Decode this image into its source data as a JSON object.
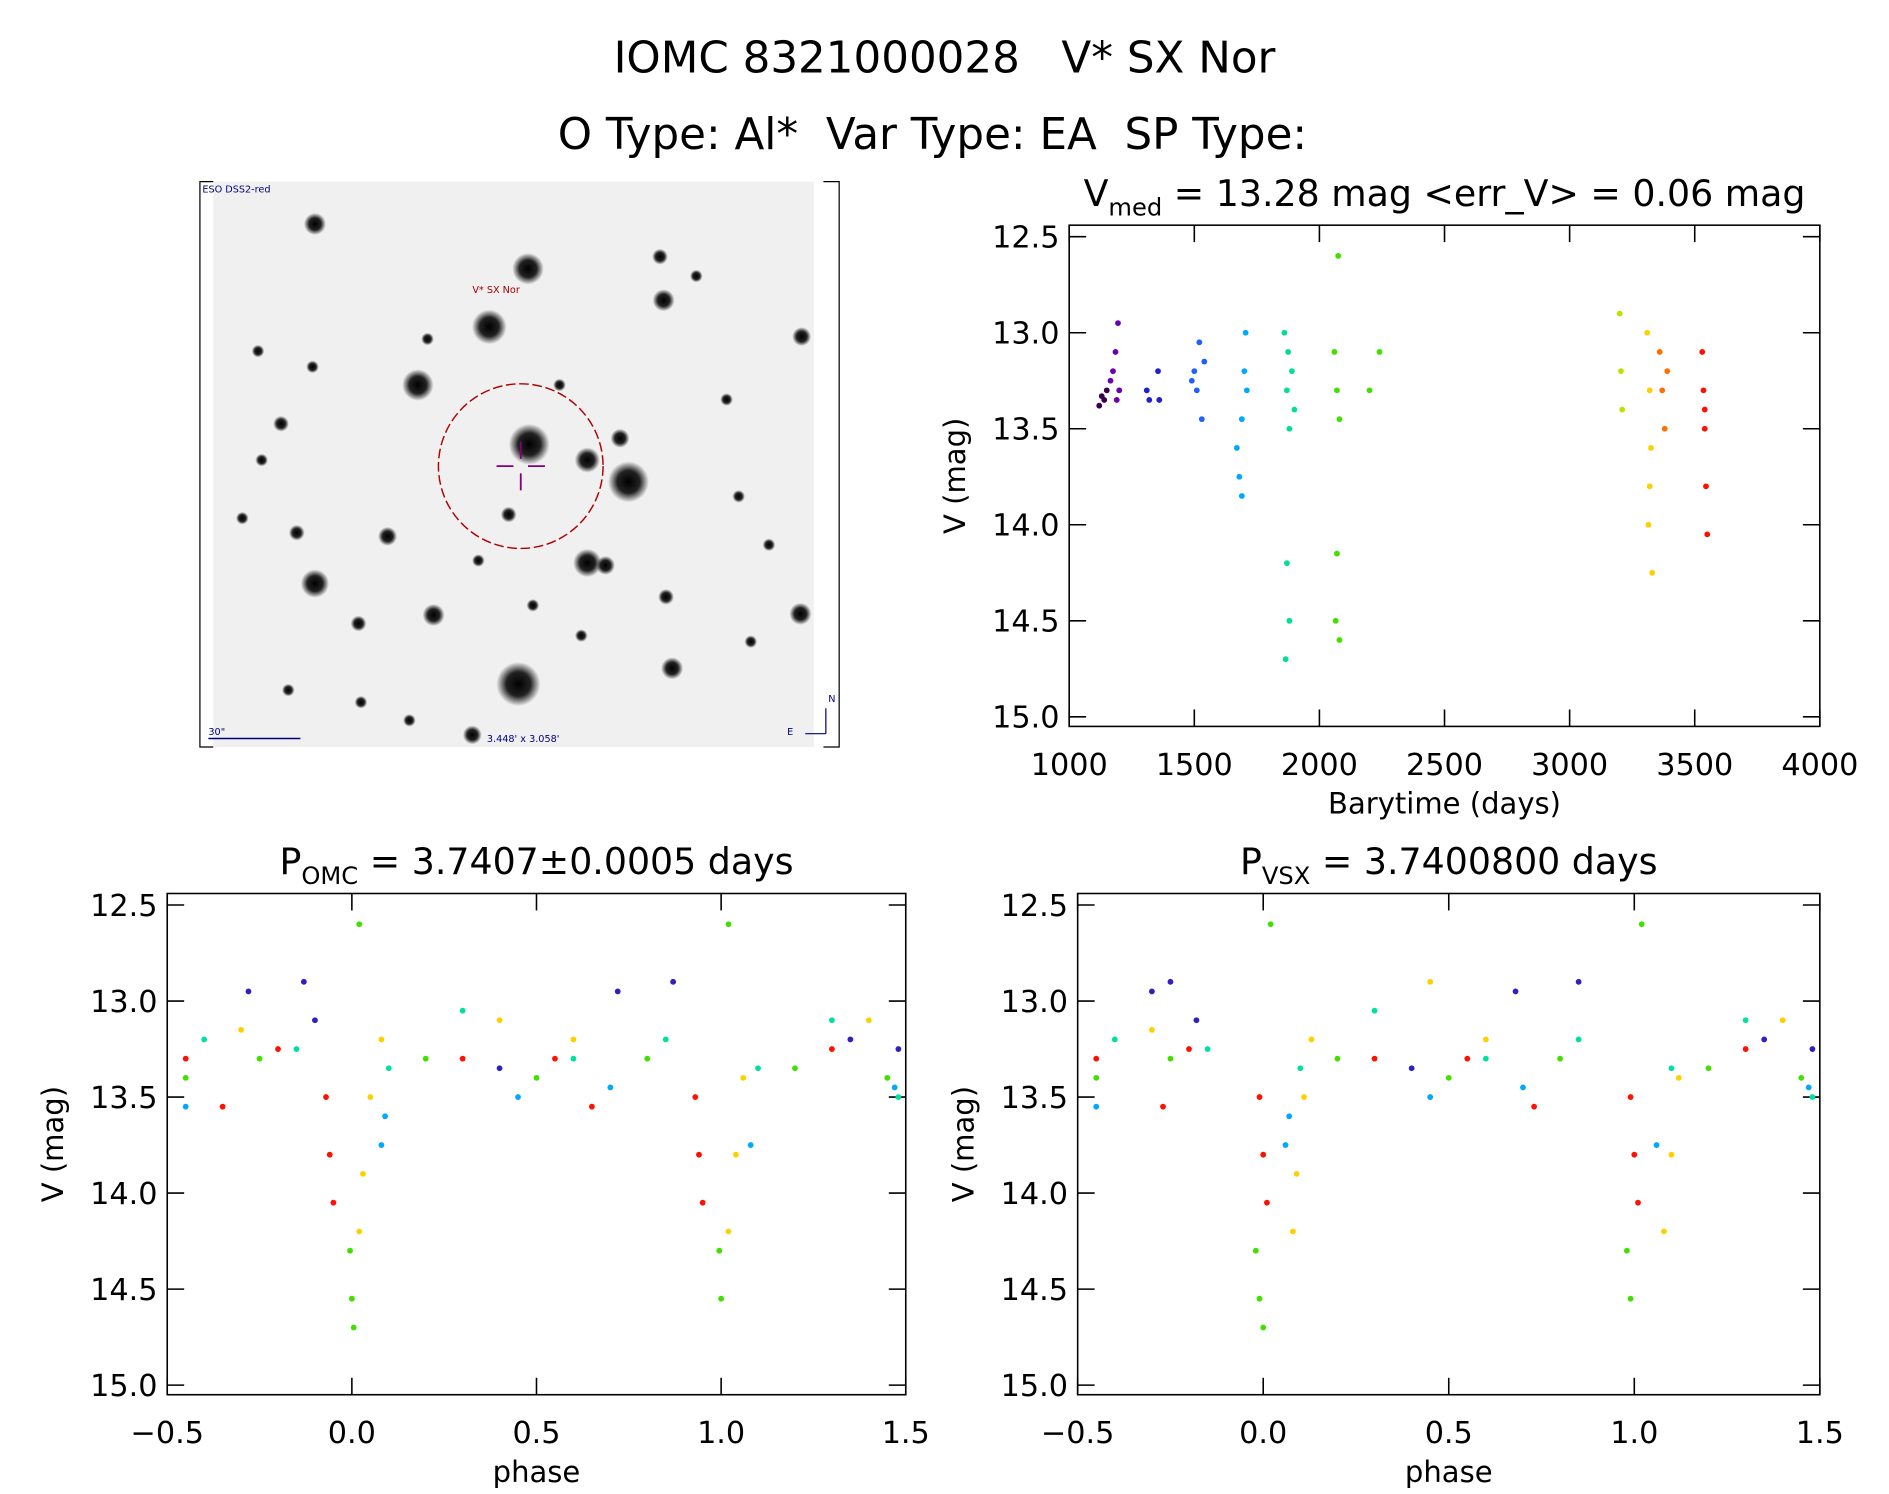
{
  "header": {
    "title": "IOMC 8321000028   V* SX Nor",
    "subtitle": "O Type: Al*  Var Type: EA  SP Type:"
  },
  "image": {
    "source": "ESO DSS2-red",
    "target": "V* SX Nor",
    "scale": "30\"",
    "size": "3.448' x 3.058'",
    "north": "N",
    "east": "E"
  },
  "chart_data": [
    {
      "type": "scatter",
      "title": [
        "V",
        "med",
        " = 13.28 mag <err_V> = 0.06 mag"
      ],
      "x_label": "Barytime (days)",
      "y_label": "V (mag)",
      "xlim": [
        1000,
        4000
      ],
      "xticks": [
        1000,
        1500,
        2000,
        2500,
        3000,
        3500,
        4000
      ],
      "ylim": [
        12.44,
        15.05
      ],
      "y_reversed": true,
      "yticks": [
        12.5,
        {
          "value": 13,
          "label": "13.0"
        },
        13.5,
        {
          "value": 14,
          "label": "14.0"
        },
        14.5,
        {
          "value": 15,
          "label": "15.0"
        }
      ],
      "series": [
        {
          "color": "#3a0050",
          "x": [
            1120,
            1130,
            1140,
            1150
          ],
          "values": [
            13.38,
            13.33,
            13.35,
            13.3
          ]
        },
        {
          "color": "#6a00b0",
          "x": [
            1165,
            1175,
            1185,
            1195,
            1200,
            1190
          ],
          "values": [
            13.25,
            13.2,
            13.1,
            12.95,
            13.3,
            13.35
          ]
        },
        {
          "color": "#2020d0",
          "x": [
            1310,
            1320,
            1355,
            1360
          ],
          "values": [
            13.3,
            13.35,
            13.2,
            13.35
          ]
        },
        {
          "color": "#2060ff",
          "x": [
            1490,
            1500,
            1510,
            1520,
            1530,
            1540
          ],
          "values": [
            13.25,
            13.2,
            13.3,
            13.05,
            13.45,
            13.15
          ]
        },
        {
          "color": "#00a8ff",
          "x": [
            1670,
            1680,
            1690,
            1700,
            1705,
            1690,
            1710
          ],
          "values": [
            13.6,
            13.75,
            13.85,
            13.2,
            13.0,
            13.45,
            13.3
          ]
        },
        {
          "color": "#00e090",
          "x": [
            1860,
            1870,
            1880,
            1890,
            1870,
            1880,
            1865,
            1900,
            1875
          ],
          "values": [
            13.0,
            13.3,
            13.5,
            13.2,
            14.2,
            14.5,
            14.7,
            13.4,
            13.1
          ]
        },
        {
          "color": "#40e000",
          "x": [
            2060,
            2070,
            2080,
            2075,
            2070,
            2065,
            2080,
            2200,
            2240
          ],
          "values": [
            13.1,
            13.3,
            13.45,
            12.6,
            14.15,
            14.5,
            14.6,
            13.3,
            13.1
          ]
        },
        {
          "color": "#c0e000",
          "x": [
            3200,
            3205,
            3210
          ],
          "values": [
            12.9,
            13.2,
            13.4
          ]
        },
        {
          "color": "#ffd000",
          "x": [
            3310,
            3320,
            3325,
            3315,
            3330,
            3320
          ],
          "values": [
            13.0,
            13.3,
            13.6,
            14.0,
            14.25,
            13.8
          ]
        },
        {
          "color": "#ff7000",
          "x": [
            3360,
            3370,
            3380,
            3390
          ],
          "values": [
            13.1,
            13.3,
            13.5,
            13.2
          ]
        },
        {
          "color": "#ff1000",
          "x": [
            3530,
            3535,
            3540,
            3545,
            3550,
            3540
          ],
          "values": [
            13.1,
            13.3,
            13.5,
            13.8,
            14.05,
            13.4
          ]
        }
      ]
    },
    {
      "type": "scatter",
      "title": [
        "P",
        "OMC",
        " = 3.7407±0.0005 days"
      ],
      "x_label": "phase",
      "y_label": "V (mag)",
      "xlim": [
        -0.5,
        1.5
      ],
      "xticks": [
        {
          "value": -0.5,
          "label": "−0.5"
        },
        {
          "value": 0,
          "label": "0.0"
        },
        0.5,
        {
          "value": 1,
          "label": "1.0"
        },
        1.5
      ],
      "ylim": [
        12.44,
        15.05
      ],
      "y_reversed": true,
      "yticks": [
        12.5,
        {
          "value": 13,
          "label": "13.0"
        },
        13.5,
        {
          "value": 14,
          "label": "14.0"
        },
        14.5,
        {
          "value": 15,
          "label": "15.0"
        }
      ],
      "series": [
        {
          "color": "#ff1000",
          "x": [
            -0.45,
            -0.35,
            -0.2,
            -0.07,
            -0.06,
            -0.05,
            0.3,
            0.55,
            0.65,
            0.93,
            0.94,
            0.95,
            1.3
          ],
          "values": [
            13.3,
            13.55,
            13.25,
            13.5,
            13.8,
            14.05,
            13.3,
            13.3,
            13.55,
            13.5,
            13.8,
            14.05,
            13.25
          ]
        },
        {
          "color": "#ffd000",
          "x": [
            -0.3,
            0.02,
            0.03,
            0.05,
            0.08,
            0.4,
            0.6,
            1.02,
            1.04,
            1.06,
            1.4
          ],
          "values": [
            13.15,
            14.2,
            13.9,
            13.5,
            13.2,
            13.1,
            13.2,
            14.2,
            13.8,
            13.4,
            13.1
          ]
        },
        {
          "color": "#40e000",
          "x": [
            -0.45,
            -0.25,
            -0.005,
            0.0,
            0.005,
            0.02,
            0.2,
            0.5,
            0.8,
            0.995,
            1.0,
            1.02,
            1.2,
            1.45
          ],
          "values": [
            13.4,
            13.3,
            14.3,
            14.55,
            14.7,
            12.6,
            13.3,
            13.4,
            13.3,
            14.3,
            14.55,
            12.6,
            13.35,
            13.4
          ]
        },
        {
          "color": "#00e0a0",
          "x": [
            -0.4,
            -0.15,
            0.1,
            0.3,
            0.6,
            0.85,
            1.1,
            1.3,
            1.48
          ],
          "values": [
            13.2,
            13.25,
            13.35,
            13.05,
            13.3,
            13.2,
            13.35,
            13.1,
            13.5
          ]
        },
        {
          "color": "#00a8ff",
          "x": [
            -0.45,
            0.08,
            0.09,
            0.45,
            0.7,
            1.08,
            1.47
          ],
          "values": [
            13.55,
            13.75,
            13.6,
            13.5,
            13.45,
            13.75,
            13.45
          ]
        },
        {
          "color": "#3020c0",
          "x": [
            -0.28,
            -0.1,
            -0.13,
            0.4,
            0.72,
            0.87,
            1.35,
            1.48
          ],
          "values": [
            12.95,
            13.1,
            12.9,
            13.35,
            12.95,
            12.9,
            13.2,
            13.25
          ]
        }
      ]
    },
    {
      "type": "scatter",
      "title": [
        "P",
        "VSX",
        " = 3.7400800 days"
      ],
      "x_label": "phase",
      "y_label": "V (mag)",
      "xlim": [
        -0.5,
        1.5
      ],
      "xticks": [
        {
          "value": -0.5,
          "label": "−0.5"
        },
        {
          "value": 0,
          "label": "0.0"
        },
        0.5,
        {
          "value": 1,
          "label": "1.0"
        },
        1.5
      ],
      "ylim": [
        12.44,
        15.05
      ],
      "y_reversed": true,
      "yticks": [
        12.5,
        {
          "value": 13,
          "label": "13.0"
        },
        13.5,
        {
          "value": 14,
          "label": "14.0"
        },
        14.5,
        {
          "value": 15,
          "label": "15.0"
        }
      ],
      "series": [
        {
          "color": "#ff1000",
          "x": [
            -0.45,
            -0.27,
            -0.2,
            -0.01,
            0.0,
            0.01,
            0.3,
            0.55,
            0.73,
            0.99,
            1.0,
            1.01,
            1.3
          ],
          "values": [
            13.3,
            13.55,
            13.25,
            13.5,
            13.8,
            14.05,
            13.3,
            13.3,
            13.55,
            13.5,
            13.8,
            14.05,
            13.25
          ]
        },
        {
          "color": "#ffd000",
          "x": [
            -0.3,
            0.08,
            0.09,
            0.11,
            0.13,
            0.45,
            0.6,
            1.08,
            1.1,
            1.12,
            1.4
          ],
          "values": [
            13.15,
            14.2,
            13.9,
            13.5,
            13.2,
            12.9,
            13.2,
            14.2,
            13.8,
            13.4,
            13.1
          ]
        },
        {
          "color": "#40e000",
          "x": [
            -0.45,
            -0.25,
            -0.02,
            -0.01,
            0.0,
            0.02,
            0.2,
            0.5,
            0.8,
            0.98,
            0.99,
            1.02,
            1.2,
            1.45
          ],
          "values": [
            13.4,
            13.3,
            14.3,
            14.55,
            14.7,
            12.6,
            13.3,
            13.4,
            13.3,
            14.3,
            14.55,
            12.6,
            13.35,
            13.4
          ]
        },
        {
          "color": "#00e0a0",
          "x": [
            -0.4,
            -0.15,
            0.1,
            0.3,
            0.6,
            0.85,
            1.1,
            1.3,
            1.48
          ],
          "values": [
            13.2,
            13.25,
            13.35,
            13.05,
            13.3,
            13.2,
            13.35,
            13.1,
            13.5
          ]
        },
        {
          "color": "#00a8ff",
          "x": [
            -0.45,
            0.06,
            0.07,
            0.45,
            0.7,
            1.06,
            1.47
          ],
          "values": [
            13.55,
            13.75,
            13.6,
            13.5,
            13.45,
            13.75,
            13.45
          ]
        },
        {
          "color": "#3020c0",
          "x": [
            -0.3,
            -0.18,
            -0.25,
            0.4,
            0.68,
            0.85,
            1.35,
            1.48
          ],
          "values": [
            12.95,
            13.1,
            12.9,
            13.35,
            12.95,
            12.9,
            13.2,
            13.25
          ]
        }
      ]
    }
  ]
}
